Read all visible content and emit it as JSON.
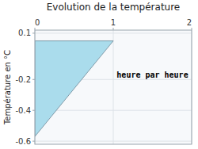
{
  "chart_data": {
    "type": "area",
    "title": "Evolution de la température",
    "y_label": "Température en °C",
    "annotations": [
      {
        "text": "heure par heure",
        "x": 1.5,
        "y": -0.17
      }
    ],
    "series": [
      {
        "x": [
          0,
          1,
          0,
          0
        ],
        "values": [
          0.05,
          0.05,
          -0.57,
          0.05
        ],
        "color": "#aadcec"
      }
    ],
    "xlim": [
      0,
      2
    ],
    "ylim": [
      -0.62,
      0.12
    ],
    "xticks": [
      0,
      1,
      2
    ],
    "yticks": [
      -0.6,
      -0.4,
      -0.2,
      0.1
    ],
    "grid": true
  }
}
